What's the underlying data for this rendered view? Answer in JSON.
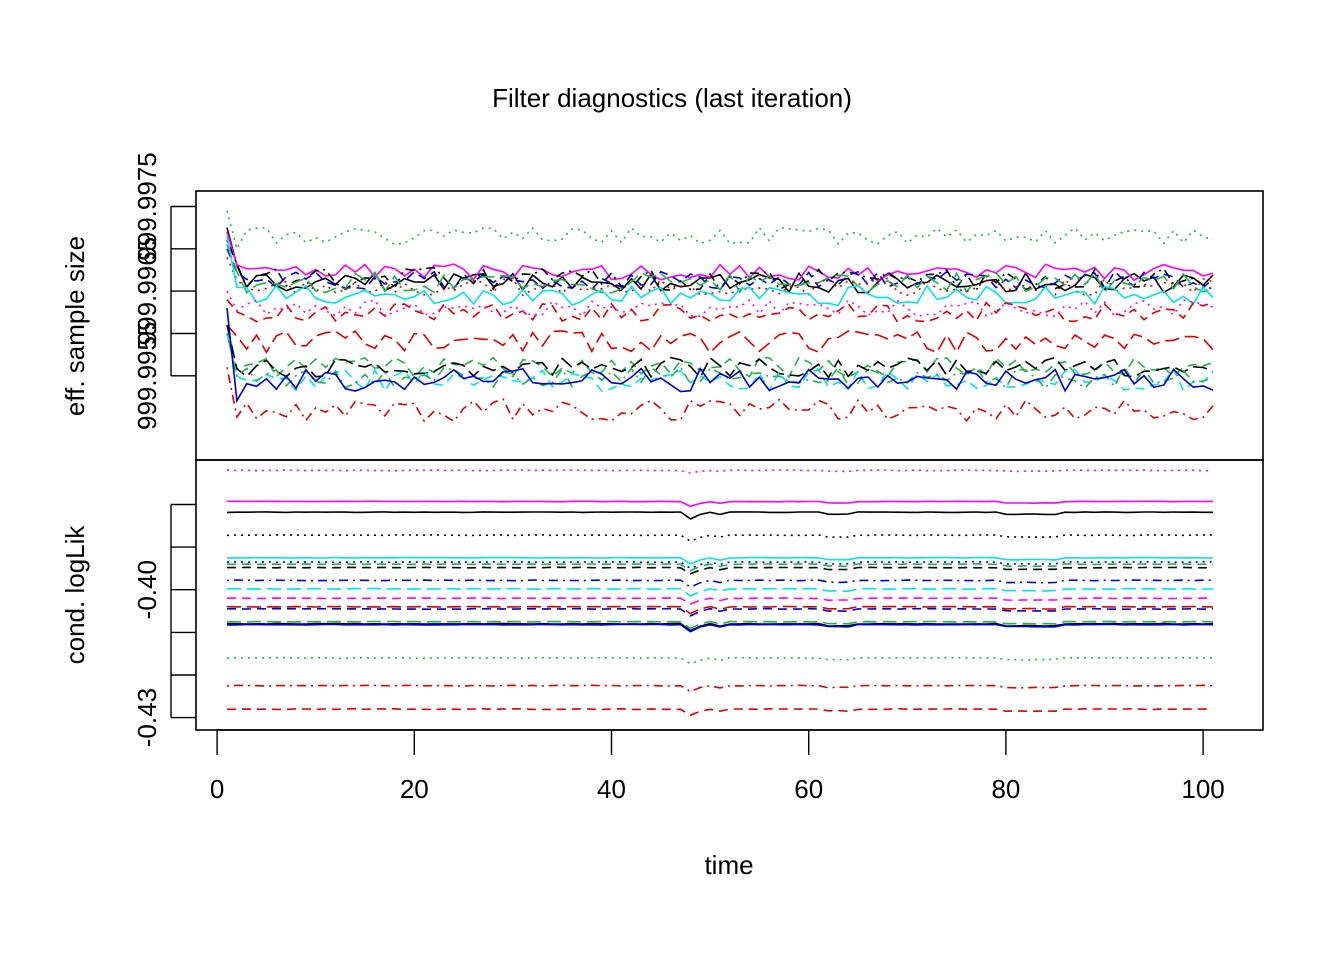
{
  "chart_data": {
    "type": "line",
    "title": "Filter diagnostics (last iteration)",
    "xlabel": "time",
    "x_ticks": [
      0,
      20,
      40,
      60,
      80,
      100
    ],
    "x_range": [
      1,
      101
    ],
    "grid": false,
    "legend": "none",
    "panels": [
      {
        "ylabel": "eff. sample size",
        "ylim": [
          999.9946,
          999.9976
        ],
        "y_ticks": [
          999.9955,
          999.996,
          999.9965,
          999.997,
          999.9975
        ],
        "y_tick_labels": [
          "999.9955",
          "",
          "999.9965",
          "",
          "999.9975"
        ],
        "series": [
          {
            "color": "#22B14C",
            "dash": "dotted",
            "start": 999.99745,
            "level": 999.99715,
            "noise": 0.0001,
            "settle": 999.997,
            "drop": 0,
            "seed": 1
          },
          {
            "color": "#000000",
            "dash": "solid",
            "start": 999.99725,
            "level": 999.9966,
            "noise": 0.00012,
            "settle": 999.9968,
            "drop": 0,
            "seed": 2
          },
          {
            "color": "#FF00FF",
            "dash": "solid",
            "start": 999.9972,
            "level": 999.99672,
            "noise": 0.0001,
            "settle": 999.9968,
            "drop": 0,
            "seed": 3
          },
          {
            "color": "#000000",
            "dash": "dashdot",
            "start": 999.9971,
            "level": 999.99665,
            "noise": 0.00014,
            "settle": 999.9968,
            "drop": 0,
            "seed": 4
          },
          {
            "color": "#0000CC",
            "dash": "dashed",
            "start": 999.997,
            "level": 999.99662,
            "noise": 0.00011,
            "settle": 999.9967,
            "drop": 0,
            "seed": 5
          },
          {
            "color": "#22B14C",
            "dash": "longdash",
            "start": 999.99705,
            "level": 999.9966,
            "noise": 0.00012,
            "settle": 999.9967,
            "drop": 0,
            "seed": 6
          },
          {
            "color": "#DD0000",
            "dash": "dotted",
            "start": 999.9969,
            "level": 999.99655,
            "noise": 0.0001,
            "settle": 999.9966,
            "drop": 0,
            "seed": 7
          },
          {
            "color": "#00E5E5",
            "dash": "solid",
            "start": 999.99715,
            "level": 999.99645,
            "noise": 0.00012,
            "settle": 999.9965,
            "drop": 0,
            "seed": 8
          },
          {
            "color": "#DD0000",
            "dash": "dashed",
            "start": 999.9964,
            "level": 999.99625,
            "noise": 0.00012,
            "settle": 999.9963,
            "drop": 0,
            "seed": 9
          },
          {
            "color": "#FF00FF",
            "dash": "dotted",
            "start": 999.9965,
            "level": 999.9963,
            "noise": 0.0001,
            "settle": 999.9963,
            "drop": 0,
            "seed": 10
          },
          {
            "color": "#DD0000",
            "dash": "longdash",
            "start": 999.9961,
            "level": 999.9959,
            "noise": 0.00013,
            "settle": 999.996,
            "drop": 0,
            "seed": 11
          },
          {
            "color": "#22B14C",
            "dash": "dashed",
            "start": 999.996,
            "level": 999.9956,
            "noise": 0.00012,
            "settle": 999.9956,
            "drop": 0,
            "seed": 12
          },
          {
            "color": "#000000",
            "dash": "longdash",
            "start": 999.9961,
            "level": 999.9956,
            "noise": 0.00012,
            "settle": 999.9956,
            "drop": 0,
            "seed": 13
          },
          {
            "color": "#00E5E5",
            "dash": "dashed",
            "start": 999.996,
            "level": 999.99545,
            "noise": 0.00013,
            "settle": 999.9955,
            "drop": 0,
            "seed": 14
          },
          {
            "color": "#22B14C",
            "dash": "dashdot",
            "start": 999.996,
            "level": 999.99548,
            "noise": 0.00013,
            "settle": 999.9955,
            "drop": 0,
            "seed": 15
          },
          {
            "color": "#0000CC",
            "dash": "solid",
            "start": 999.9963,
            "level": 999.99545,
            "noise": 0.00014,
            "settle": 999.9952,
            "drop": 0,
            "seed": 16
          },
          {
            "color": "#DD0000",
            "dash": "dashdot",
            "start": 999.9956,
            "level": 999.9951,
            "noise": 0.00014,
            "settle": 999.995,
            "drop": 0,
            "seed": 17
          }
        ]
      },
      {
        "ylabel": "cond. logLik",
        "ylim": [
          -0.4315,
          -0.3705
        ],
        "y_ticks": [
          -0.43,
          -0.42,
          -0.41,
          -0.4,
          -0.39,
          -0.38
        ],
        "y_tick_labels": [
          "-0.43",
          "",
          "",
          "-0.40",
          "",
          ""
        ],
        "series": [
          {
            "color": "#FF00FF",
            "dash": "dotted",
            "level": -0.372,
            "noise": 8e-05,
            "drop": 0.0006,
            "seed": 21
          },
          {
            "color": "#FF00FF",
            "dash": "solid",
            "level": -0.3793,
            "noise": 6e-05,
            "drop": 0.0012,
            "seed": 22
          },
          {
            "color": "#000000",
            "dash": "solid",
            "level": -0.3818,
            "noise": 6e-05,
            "drop": 0.0016,
            "seed": 23
          },
          {
            "color": "#000000",
            "dash": "dotted",
            "level": -0.3872,
            "noise": 6e-05,
            "drop": 0.0014,
            "seed": 24
          },
          {
            "color": "#00E5E5",
            "dash": "solid",
            "level": -0.3925,
            "noise": 6e-05,
            "drop": 0.0015,
            "seed": 25
          },
          {
            "color": "#0000CC",
            "dash": "dotted",
            "level": -0.3935,
            "noise": 6e-05,
            "drop": 0.0015,
            "seed": 26
          },
          {
            "color": "#22B14C",
            "dash": "dashed",
            "level": -0.394,
            "noise": 6e-05,
            "drop": 0.0015,
            "seed": 27
          },
          {
            "color": "#000000",
            "dash": "dashed",
            "level": -0.3948,
            "noise": 6e-05,
            "drop": 0.0015,
            "seed": 28
          },
          {
            "color": "#0000CC",
            "dash": "dashdot",
            "level": -0.3978,
            "noise": 8e-05,
            "drop": 0.0016,
            "seed": 29
          },
          {
            "color": "#00E5E5",
            "dash": "longdash",
            "level": -0.3998,
            "noise": 8e-05,
            "drop": 0.0016,
            "seed": 30
          },
          {
            "color": "#FF00FF",
            "dash": "dashed",
            "level": -0.402,
            "noise": 6e-05,
            "drop": 0.0014,
            "seed": 31
          },
          {
            "color": "#DD0000",
            "dash": "longdash",
            "level": -0.404,
            "noise": 6e-05,
            "drop": 0.0016,
            "seed": 32
          },
          {
            "color": "#0000CC",
            "dash": "dashed",
            "level": -0.4045,
            "noise": 6e-05,
            "drop": 0.0016,
            "seed": 33
          },
          {
            "color": "#22B14C",
            "dash": "longdash",
            "level": -0.4075,
            "noise": 6e-05,
            "drop": 0.0016,
            "seed": 34
          },
          {
            "color": "#000000",
            "dash": "solid",
            "level": -0.408,
            "noise": 6e-05,
            "drop": 0.0016,
            "seed": 35
          },
          {
            "color": "#0000CC",
            "dash": "solid",
            "level": -0.4082,
            "noise": 6e-05,
            "drop": 0.0016,
            "seed": 36
          },
          {
            "color": "#22B14C",
            "dash": "dotted",
            "level": -0.416,
            "noise": 8e-05,
            "drop": 0.0014,
            "seed": 37
          },
          {
            "color": "#DD0000",
            "dash": "dashdot",
            "level": -0.4225,
            "noise": 8e-05,
            "drop": 0.0014,
            "seed": 38
          },
          {
            "color": "#DD0000",
            "dash": "dashed",
            "level": -0.428,
            "noise": 8e-05,
            "drop": 0.0014,
            "seed": 39
          }
        ]
      }
    ]
  }
}
